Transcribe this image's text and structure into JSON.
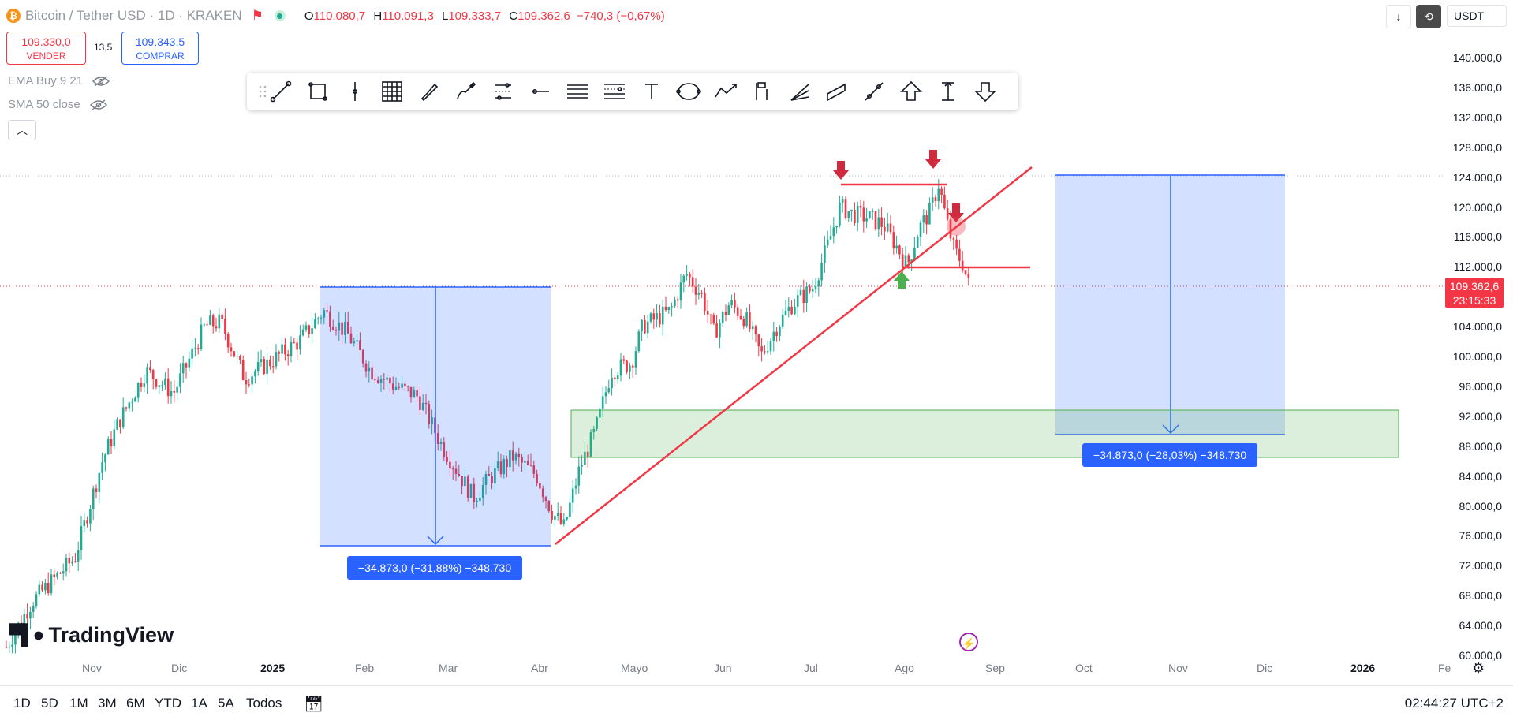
{
  "header": {
    "coin_glyph": "₿",
    "symbol": "Bitcoin / Tether USD · 1D · KRAKEN",
    "ohlc": {
      "o_label": "O",
      "o": "110.080,7",
      "h_label": "H",
      "h": "110.091,3",
      "l_label": "L",
      "l": "109.333,7",
      "c_label": "C",
      "c": "109.362,6",
      "change": "−740,3 (−0,67%)"
    }
  },
  "trade": {
    "sell_price": "109.330,0",
    "sell_label": "VENDER",
    "spread": "13,5",
    "buy_price": "109.343,5",
    "buy_label": "COMPRAR"
  },
  "indicators": [
    {
      "label": "EMA Buy 9 21"
    },
    {
      "label": "SMA 50 close"
    }
  ],
  "right_top": {
    "currency": "USDT"
  },
  "price_axis": {
    "labels": [
      "140.000,0",
      "136.000,0",
      "132.000,0",
      "128.000,0",
      "124.000,0",
      "120.000,0",
      "116.000,0",
      "112.000,0",
      "108.000,0",
      "104.000,0",
      "100.000,0",
      "96.000,0",
      "92.000,0",
      "88.000,0",
      "84.000,0",
      "80.000,0",
      "76.000,0",
      "72.000,0",
      "68.000,0",
      "64.000,0",
      "60.000,0"
    ],
    "current_price": "109.362,6",
    "countdown": "23:15:33"
  },
  "time_axis": {
    "labels": [
      "Nov",
      "Dic",
      "2025",
      "Feb",
      "Mar",
      "Abr",
      "Mayo",
      "Jun",
      "Jul",
      "Ago",
      "Sep",
      "Oct",
      "Nov",
      "Dic",
      "2026",
      "Fe"
    ]
  },
  "measurements": [
    {
      "text": "−34.873,0 (−31,88%) −348.730"
    },
    {
      "text": "−34.873,0 (−28,03%) −348.730"
    }
  ],
  "logo": {
    "text": "TradingView"
  },
  "bottom": {
    "ranges": [
      "1D",
      "5D",
      "1M",
      "3M",
      "6M",
      "YTD",
      "1A",
      "5A",
      "Todos"
    ],
    "clock": "02:44:27 UTC+2"
  },
  "toolbar": {
    "tools": [
      "grip-icon",
      "trend-line-icon",
      "rectangle-icon",
      "vertical-line-icon",
      "grid-icon",
      "brush-icon",
      "pen-icon",
      "parallel-channel-icon",
      "horizontal-ray-icon",
      "horizontal-lines-icon",
      "fib-retracement-icon",
      "text-icon",
      "ellipse-icon",
      "path-icon",
      "long-position-icon",
      "fib-fan-icon",
      "channel-icon",
      "ruler-icon",
      "arrow-up-icon",
      "price-range-icon",
      "arrow-down-icon"
    ]
  },
  "colors": {
    "up": "#22ab94",
    "down": "#f23645",
    "accent": "#2962ff"
  }
}
